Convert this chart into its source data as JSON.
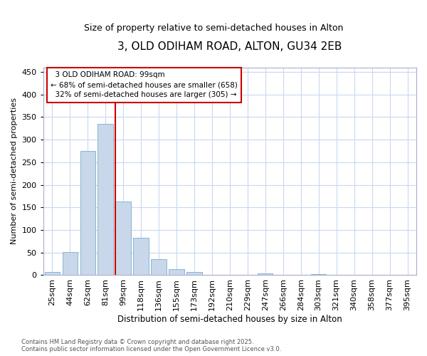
{
  "title1": "3, OLD ODIHAM ROAD, ALTON, GU34 2EB",
  "title2": "Size of property relative to semi-detached houses in Alton",
  "xlabel": "Distribution of semi-detached houses by size in Alton",
  "ylabel": "Number of semi-detached properties",
  "bar_labels": [
    "25sqm",
    "44sqm",
    "62sqm",
    "81sqm",
    "99sqm",
    "118sqm",
    "136sqm",
    "155sqm",
    "173sqm",
    "192sqm",
    "210sqm",
    "229sqm",
    "247sqm",
    "266sqm",
    "284sqm",
    "303sqm",
    "321sqm",
    "340sqm",
    "358sqm",
    "377sqm",
    "395sqm"
  ],
  "bar_values": [
    7,
    51,
    275,
    335,
    163,
    83,
    35,
    13,
    7,
    0,
    0,
    0,
    4,
    0,
    0,
    2,
    0,
    0,
    0,
    0,
    0
  ],
  "property_line_idx": 4,
  "property_sqm": 99,
  "pct_smaller": 68,
  "count_smaller": 658,
  "pct_larger": 32,
  "count_larger": 305,
  "bar_color": "#c8d8ea",
  "bar_edge_color": "#7aabcc",
  "line_color": "#cc0000",
  "annotation_box_color": "#cc0000",
  "background_color": "#ffffff",
  "grid_color": "#c8d8f0",
  "ylim": [
    0,
    460
  ],
  "yticks": [
    0,
    50,
    100,
    150,
    200,
    250,
    300,
    350,
    400,
    450
  ],
  "footnote": "Contains HM Land Registry data © Crown copyright and database right 2025.\nContains public sector information licensed under the Open Government Licence v3.0."
}
